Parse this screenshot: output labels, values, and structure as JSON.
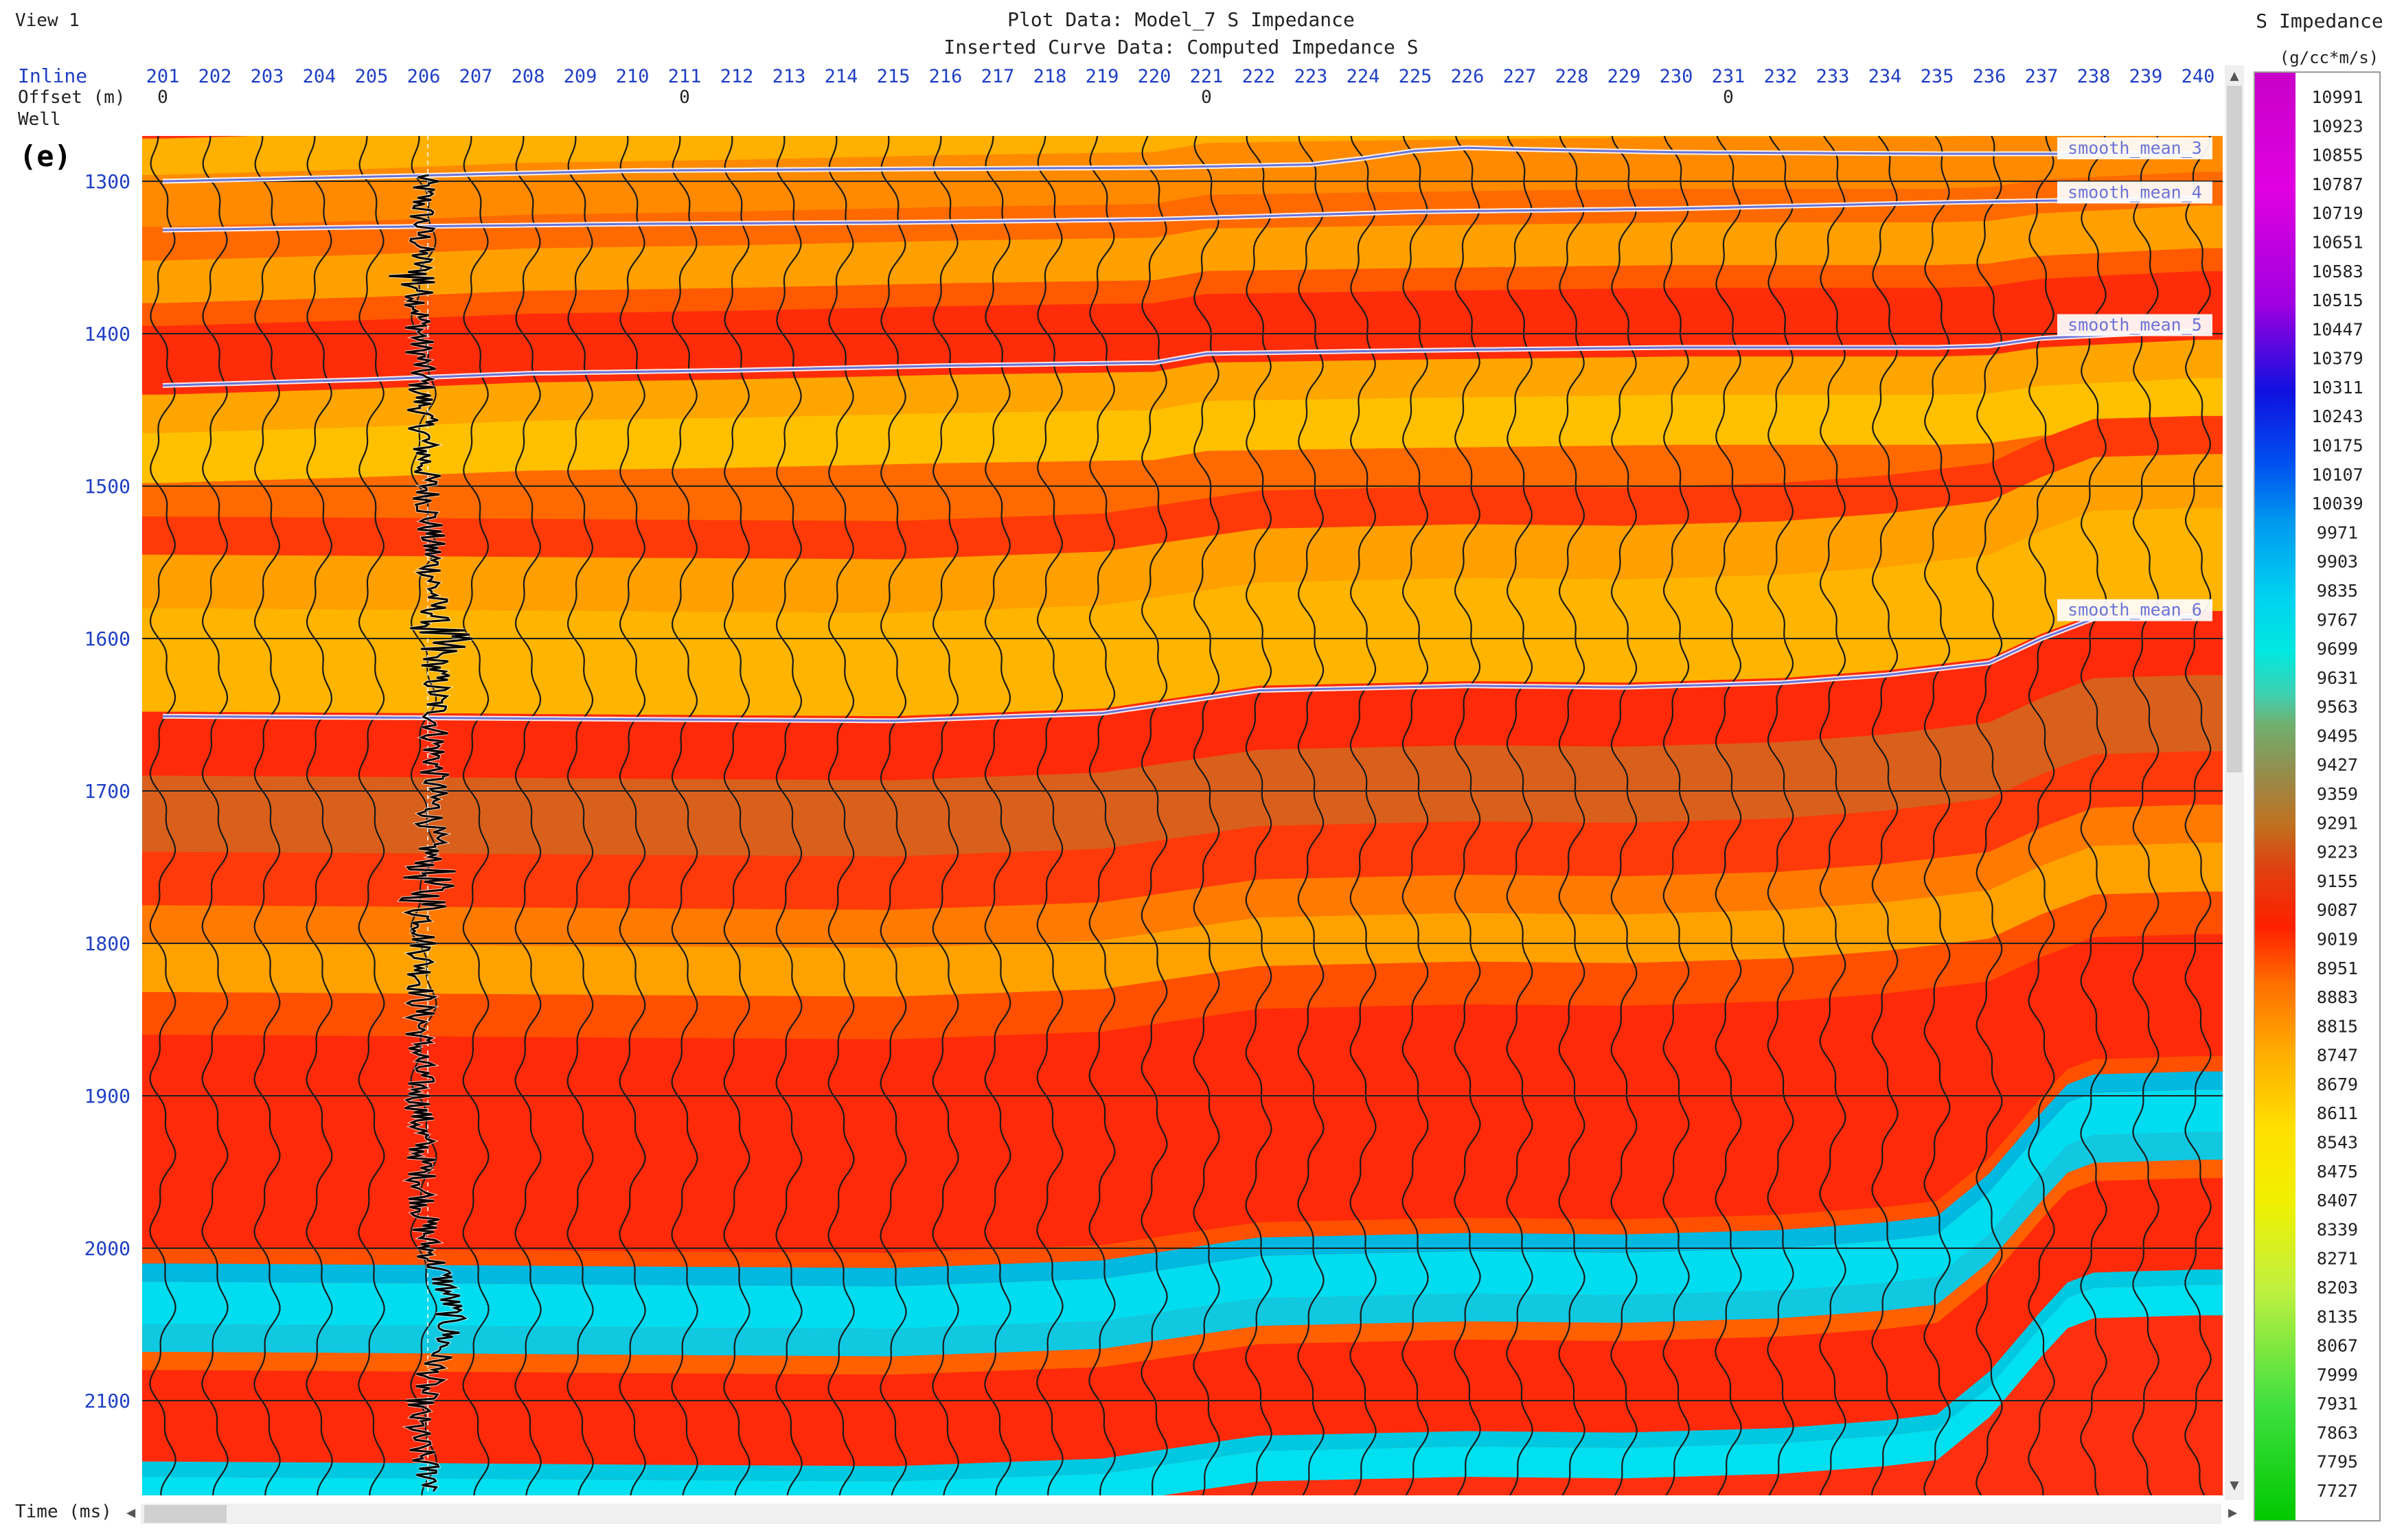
{
  "header": {
    "view_label": "View 1",
    "plot_data": "Plot Data: Model_7 S Impedance",
    "inserted_curve": "Inserted Curve Data: Computed Impedance S",
    "panel_label": "(e)"
  },
  "rows": {
    "inline_label": "Inline",
    "offset_label": "Offset (m)",
    "well_label": "Well",
    "time_label": "Time (ms)"
  },
  "colorbar": {
    "title": "S Impedance",
    "unit": "(g/cc*m/s)",
    "labels": [
      "10991",
      "10923",
      "10855",
      "10787",
      "10719",
      "10651",
      "10583",
      "10515",
      "10447",
      "10379",
      "10311",
      "10243",
      "10175",
      "10107",
      "10039",
      "9971",
      "9903",
      "9835",
      "9767",
      "9699",
      "9631",
      "9563",
      "9495",
      "9427",
      "9359",
      "9291",
      "9223",
      "9155",
      "9087",
      "9019",
      "8951",
      "8883",
      "8815",
      "8747",
      "8679",
      "8611",
      "8543",
      "8475",
      "8407",
      "8339",
      "8271",
      "8203",
      "8135",
      "8067",
      "7999",
      "7931",
      "7863",
      "7795",
      "7727"
    ]
  },
  "colors": {
    "axis_text": "#1f3fc4",
    "scrollbar": "#d8d8d8",
    "horizon_line": "#6b73d8",
    "well_log": "#000000"
  },
  "chart_data": {
    "type": "heatmap",
    "x_axis": {
      "label": "Inline",
      "categories": [
        201,
        202,
        203,
        204,
        205,
        206,
        207,
        208,
        209,
        210,
        211,
        212,
        213,
        214,
        215,
        216,
        217,
        218,
        219,
        220,
        221,
        222,
        223,
        224,
        225,
        226,
        227,
        228,
        229,
        230,
        231,
        232,
        233,
        234,
        235,
        236,
        237,
        238,
        239,
        240
      ],
      "offset_ticks": [
        {
          "inline": 201,
          "label": "0"
        },
        {
          "inline": 211,
          "label": "0"
        },
        {
          "inline": 221,
          "label": "0"
        },
        {
          "inline": 231,
          "label": "0"
        }
      ]
    },
    "y_axis": {
      "label": "Time (ms)",
      "ticks": [
        1300,
        1400,
        1500,
        1600,
        1700,
        1800,
        1900,
        2000,
        2100
      ],
      "range": [
        1272,
        2162
      ]
    },
    "color_scale": {
      "min": 7727,
      "max": 10991,
      "unit": "g/cc*m/s"
    },
    "well": {
      "inline": 206
    },
    "horizons": [
      {
        "name": "smooth_mean_3",
        "points": [
          [
            201,
            1300
          ],
          [
            205,
            1297
          ],
          [
            210,
            1293
          ],
          [
            215,
            1292
          ],
          [
            220,
            1291
          ],
          [
            223,
            1289
          ],
          [
            224,
            1285
          ],
          [
            225,
            1280
          ],
          [
            226,
            1278
          ],
          [
            227,
            1279
          ],
          [
            230,
            1281
          ],
          [
            235,
            1282
          ],
          [
            240,
            1282
          ]
        ]
      },
      {
        "name": "smooth_mean_4",
        "points": [
          [
            201,
            1332
          ],
          [
            205,
            1330
          ],
          [
            210,
            1328
          ],
          [
            215,
            1327
          ],
          [
            220,
            1325
          ],
          [
            225,
            1320
          ],
          [
            230,
            1318
          ],
          [
            235,
            1314
          ],
          [
            240,
            1311
          ]
        ]
      },
      {
        "name": "smooth_mean_5",
        "points": [
          [
            201,
            1434
          ],
          [
            205,
            1430
          ],
          [
            208,
            1426
          ],
          [
            212,
            1424
          ],
          [
            216,
            1421
          ],
          [
            220,
            1419
          ],
          [
            221,
            1413
          ],
          [
            225,
            1411
          ],
          [
            230,
            1409
          ],
          [
            235,
            1409
          ],
          [
            236,
            1408
          ],
          [
            237,
            1403
          ],
          [
            240,
            1398
          ]
        ]
      },
      {
        "name": "smooth_mean_6",
        "points": [
          [
            201,
            1651
          ],
          [
            206,
            1652
          ],
          [
            210,
            1653
          ],
          [
            215,
            1654
          ],
          [
            219,
            1649
          ],
          [
            222,
            1634
          ],
          [
            226,
            1631
          ],
          [
            229,
            1632
          ],
          [
            232,
            1629
          ],
          [
            234,
            1624
          ],
          [
            236,
            1616
          ],
          [
            237,
            1600
          ],
          [
            238,
            1587
          ],
          [
            240,
            1585
          ]
        ]
      }
    ]
  }
}
